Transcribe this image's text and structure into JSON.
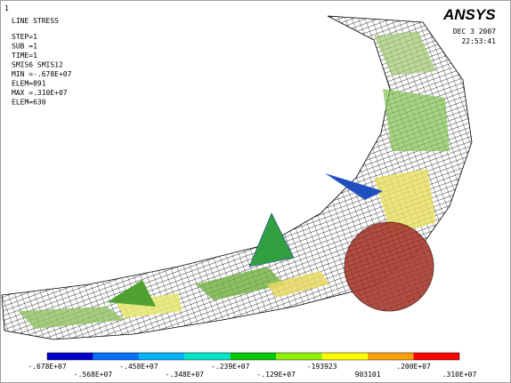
{
  "window_label": "1",
  "info": {
    "title": "LINE STRESS",
    "lines": [
      "STEP=1",
      "SUB =1",
      "TIME=1",
      "SMIS6    SMIS12",
      "MIN =-.678E+07",
      "ELEM=891",
      "MAX =.310E+07",
      "ELEM=630"
    ]
  },
  "logo": "ANSYS",
  "date": "DEC  3 2007",
  "time": "22:53:41",
  "legend": {
    "colors": [
      "#0000c8",
      "#0070ff",
      "#00b4ff",
      "#00e6c8",
      "#00c800",
      "#90f000",
      "#ffff00",
      "#ffa000",
      "#ff0000"
    ],
    "labels": [
      "-.678E+07",
      "-.568E+07",
      "-.458E+07",
      "-.348E+07",
      "-.239E+07",
      "-.129E+07",
      "-193923",
      "903101",
      ".200E+07",
      ".310E+07"
    ]
  }
}
